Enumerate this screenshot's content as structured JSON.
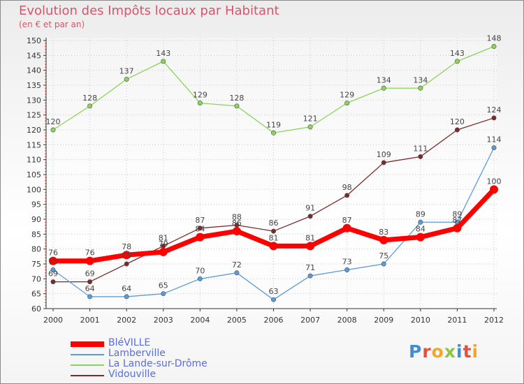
{
  "chart_data": {
    "type": "line",
    "title": "Evolution des Impôts locaux par Habitant",
    "subtitle": "(en € et par an)",
    "x": [
      "2000",
      "2001",
      "2002",
      "2003",
      "2004",
      "2005",
      "2006",
      "2007",
      "2008",
      "2009",
      "2010",
      "2011",
      "2012"
    ],
    "ylim": [
      60,
      150
    ],
    "yticks": [
      60,
      65,
      70,
      75,
      80,
      85,
      90,
      95,
      100,
      105,
      110,
      115,
      120,
      125,
      130,
      135,
      140,
      145,
      150
    ],
    "grid": true,
    "legend_position": "bottom-left",
    "series": [
      {
        "name": "BléVILLE",
        "color": "#ff0000",
        "values": [
          76,
          76,
          78,
          79,
          84,
          86,
          81,
          81,
          87,
          83,
          84,
          87,
          100
        ]
      },
      {
        "name": "Lamberville",
        "color": "#5b9bd5",
        "values": [
          73,
          64,
          64,
          65,
          70,
          72,
          63,
          71,
          73,
          75,
          89,
          89,
          114
        ]
      },
      {
        "name": "La Lande-sur-Drôme",
        "color": "#8bd45a",
        "values": [
          120,
          128,
          137,
          143,
          129,
          128,
          119,
          121,
          129,
          134,
          134,
          143,
          148
        ]
      },
      {
        "name": "Vidouville",
        "color": "#7b2a2a",
        "values": [
          69,
          69,
          75,
          81,
          87,
          88,
          86,
          91,
          98,
          109,
          111,
          120,
          124
        ]
      }
    ],
    "data_labels": {
      "BléVILLE": [
        76,
        76,
        78,
        79,
        84,
        86,
        81,
        81,
        87,
        83,
        84,
        87,
        100
      ],
      "Lamberville": [
        73,
        64,
        64,
        65,
        70,
        72,
        63,
        71,
        73,
        75,
        89,
        89,
        114
      ],
      "La Lande-sur-Drôme": [
        120,
        128,
        137,
        143,
        129,
        128,
        119,
        121,
        129,
        134,
        134,
        143,
        148
      ],
      "Vidouville": [
        69,
        69,
        75,
        81,
        87,
        88,
        86,
        91,
        98,
        109,
        111,
        120,
        124
      ]
    }
  },
  "logo": {
    "letters": [
      "P",
      "r",
      "o",
      "x",
      "i",
      "t",
      "i"
    ]
  }
}
